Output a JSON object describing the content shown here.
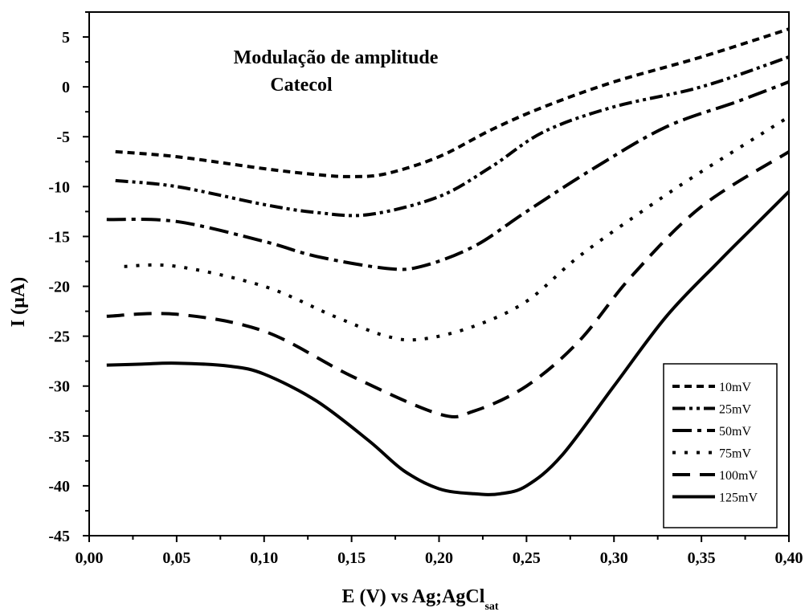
{
  "chart_data": {
    "type": "line",
    "annotations": [
      "Modulação de amplitude",
      "Catecol"
    ],
    "xlabel": "E (V) vs Ag;AgCl",
    "xlabel_subscript": "sat",
    "ylabel": "I (µA)",
    "xlim": [
      0.0,
      0.4
    ],
    "ylim": [
      -45,
      7.5
    ],
    "x_ticks": [
      "0,00",
      "0,05",
      "0,10",
      "0,15",
      "0,20",
      "0,25",
      "0,30",
      "0,35",
      "0,40"
    ],
    "y_ticks": [
      "5",
      "0",
      "-5",
      "-10",
      "-15",
      "-20",
      "-25",
      "-30",
      "-35",
      "-40",
      "-45"
    ],
    "grid": false,
    "legend_position": "bottom-right",
    "series": [
      {
        "name": "10mV",
        "dash": "short-dash",
        "x": [
          0.015,
          0.05,
          0.1,
          0.13,
          0.15,
          0.17,
          0.2,
          0.23,
          0.26,
          0.3,
          0.35,
          0.4
        ],
        "y": [
          -6.5,
          -7.0,
          -8.2,
          -8.8,
          -9.0,
          -8.7,
          -7.0,
          -4.3,
          -2.0,
          0.5,
          3.0,
          5.8
        ]
      },
      {
        "name": "25mV",
        "dash": "dash-dot-dot",
        "x": [
          0.015,
          0.05,
          0.1,
          0.13,
          0.16,
          0.2,
          0.23,
          0.26,
          0.3,
          0.35,
          0.4
        ],
        "y": [
          -9.4,
          -10.0,
          -11.8,
          -12.6,
          -12.8,
          -11.0,
          -8.0,
          -4.5,
          -2.0,
          0.0,
          3.0
        ]
      },
      {
        "name": "50mV",
        "dash": "dash-dot",
        "x": [
          0.01,
          0.05,
          0.1,
          0.13,
          0.17,
          0.19,
          0.22,
          0.25,
          0.29,
          0.33,
          0.37,
          0.4
        ],
        "y": [
          -13.3,
          -13.5,
          -15.5,
          -17.0,
          -18.2,
          -18.0,
          -16.0,
          -12.5,
          -8.0,
          -4.0,
          -1.5,
          0.5
        ]
      },
      {
        "name": "75mV",
        "dash": "dotted",
        "x": [
          0.02,
          0.05,
          0.1,
          0.14,
          0.17,
          0.19,
          0.22,
          0.25,
          0.28,
          0.32,
          0.35,
          0.4
        ],
        "y": [
          -18.0,
          -18.0,
          -20.0,
          -23.0,
          -25.0,
          -25.3,
          -24.0,
          -21.5,
          -17.0,
          -12.0,
          -8.5,
          -3.0
        ]
      },
      {
        "name": "100mV",
        "dash": "long-dash",
        "x": [
          0.01,
          0.05,
          0.1,
          0.15,
          0.2,
          0.22,
          0.25,
          0.28,
          0.31,
          0.35,
          0.4
        ],
        "y": [
          -23.0,
          -22.8,
          -24.5,
          -29.0,
          -32.8,
          -32.5,
          -30.0,
          -25.5,
          -19.0,
          -12.0,
          -6.5
        ]
      },
      {
        "name": "125mV",
        "dash": "solid",
        "x": [
          0.01,
          0.03,
          0.05,
          0.08,
          0.1,
          0.13,
          0.16,
          0.18,
          0.2,
          0.22,
          0.235,
          0.25,
          0.27,
          0.3,
          0.33,
          0.36,
          0.38,
          0.4
        ],
        "y": [
          -27.9,
          -27.8,
          -27.7,
          -28.0,
          -28.8,
          -31.5,
          -35.5,
          -38.5,
          -40.3,
          -40.8,
          -40.8,
          -40.0,
          -37.0,
          -30.0,
          -23.0,
          -17.5,
          -14.0,
          -10.5
        ]
      }
    ]
  }
}
